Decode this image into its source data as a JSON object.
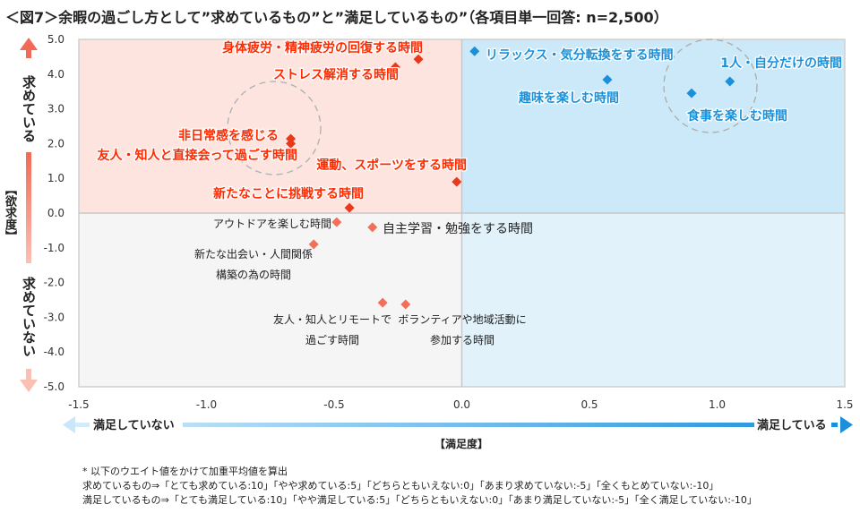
{
  "title": "＜図7＞余暇の過ごし方として”求めているもの”と”満足しているもの”（各項目単一回答: n=2,500）",
  "chart_data": {
    "type": "scatter",
    "xlabel": "【満足度】",
    "ylabel": "【欲求度】",
    "x_low_label": "満足していない",
    "x_high_label": "満足している",
    "y_high_label": "求めている",
    "y_low_label": "求めていない",
    "xlim": [
      -1.5,
      1.5
    ],
    "ylim": [
      -5.0,
      5.0
    ],
    "x_ticks": [
      "-1.5",
      "-1.0",
      "-0.5",
      "0.0",
      "0.5",
      "1.0",
      "1.5"
    ],
    "y_ticks": [
      "5.0",
      "4.0",
      "3.0",
      "2.0",
      "1.0",
      "0.0",
      "-1.0",
      "-2.0",
      "-3.0",
      "-4.0",
      "-5.0"
    ],
    "quadrant_colors": {
      "top_left": "#fde4df",
      "top_right": "#cce9f9",
      "bottom_left": "#f5f5f5",
      "bottom_right": "#e2f2fb"
    },
    "colors": {
      "strong_red": "#ff2a00",
      "marker_red": "#e8391c",
      "light_red": "#f2705a",
      "blue": "#1a90da"
    },
    "points": [
      {
        "label": "身体疲労・精神疲労の回復する時間",
        "x": -0.17,
        "y": 4.43,
        "group": "strong_red"
      },
      {
        "label": "ストレス解消する時間",
        "x": -0.26,
        "y": 4.2,
        "group": "strong_red"
      },
      {
        "label": "非日常感を感じる",
        "x": -0.67,
        "y": 2.14,
        "group": "strong_red"
      },
      {
        "label": "友人・知人と直接会って過ごす時間",
        "x": -0.67,
        "y": 2.0,
        "group": "strong_red"
      },
      {
        "label": "運動、スポーツをする時間",
        "x": -0.02,
        "y": 0.9,
        "group": "strong_red"
      },
      {
        "label": "新たなことに挑戦する時間",
        "x": -0.44,
        "y": 0.15,
        "group": "strong_red"
      },
      {
        "label": "リラックス・気分転換をする時間",
        "x": 0.05,
        "y": 4.66,
        "group": "blue"
      },
      {
        "label": "趣味を楽しむ時間",
        "x": 0.57,
        "y": 3.84,
        "group": "blue"
      },
      {
        "label": "1人・自分だけの時間",
        "x": 1.05,
        "y": 3.79,
        "group": "blue"
      },
      {
        "label": "食事を楽しむ時間",
        "x": 0.9,
        "y": 3.45,
        "group": "blue"
      },
      {
        "label": "アウトドアを楽しむ時間",
        "x": -0.49,
        "y": -0.26,
        "group": "light_red"
      },
      {
        "label": "自主学習・勉強をする時間",
        "x": -0.35,
        "y": -0.41,
        "group": "light_red"
      },
      {
        "label": "新たな出会い・人間関係\n構築の為の時間",
        "x": -0.58,
        "y": -0.9,
        "group": "light_red"
      },
      {
        "label": "友人・知人とリモートで\n過ごす時間",
        "x": -0.31,
        "y": -2.58,
        "group": "light_red"
      },
      {
        "label": "ボランティアや地域活動に\n参加する時間",
        "x": -0.22,
        "y": -2.63,
        "group": "light_red"
      }
    ]
  },
  "notes": [
    "* 以下のウエイト値をかけて加重平均値を算出",
    "求めているもの⇒「とても求めている:10」「やや求めている:5」「どちらともいえない:0」「あまり求めていない:-5」「全くもとめていない:-10」",
    "満足しているもの⇒「とても満足している:10」「やや満足している:5」「どちらともいえない:0」「あまり満足していない:-5」「全く満足していない:-10」"
  ]
}
